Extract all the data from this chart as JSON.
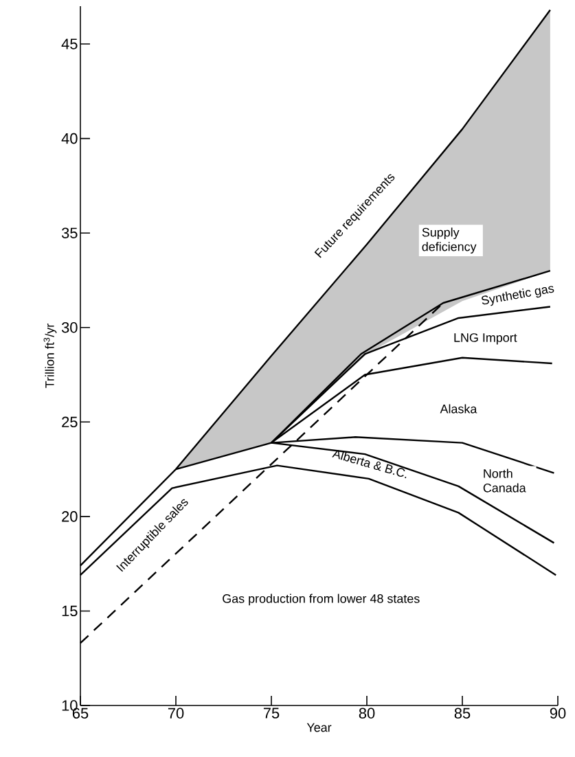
{
  "chart_data": {
    "type": "line",
    "xlabel": "Year",
    "ylabel": "Trillion ft$^{3}$/yr",
    "xlim": [
      65,
      90
    ],
    "ylim": [
      10,
      47
    ],
    "xticks": [
      65,
      70,
      75,
      80,
      85,
      90
    ],
    "yticks": [
      10,
      15,
      20,
      25,
      30,
      35,
      40,
      45
    ],
    "grid": false,
    "marker": "none",
    "line_style": "solid",
    "series": [
      {
        "color": "#000000",
        "x": [
          65,
          70,
          75,
          80,
          85,
          89.6
        ],
        "values": [
          17.4,
          22.5,
          28.5,
          34.4,
          40.5,
          46.8
        ],
        "upper": [
          null,
          22.5,
          28.5,
          34.4,
          40.5,
          46.8
        ],
        "lower": [
          null,
          22.5,
          23.9,
          28.6,
          31.4,
          33.0
        ]
      },
      {
        "color": "#000000",
        "x": [
          70,
          75,
          79.7,
          84,
          89.6
        ],
        "values": [
          22.5,
          23.9,
          28.6,
          31.3,
          33.0
        ]
      },
      {
        "color": "#000000",
        "x": [
          75,
          79.9,
          84.8,
          89.6
        ],
        "values": [
          23.9,
          28.6,
          30.5,
          31.1
        ]
      },
      {
        "color": "#000000",
        "x": [
          75,
          79.9,
          85,
          89.7
        ],
        "values": [
          23.9,
          27.5,
          28.4,
          28.1
        ]
      },
      {
        "color": "#000000",
        "x": [
          75,
          79.4,
          85,
          89.8
        ],
        "values": [
          23.9,
          24.2,
          23.9,
          22.3
        ]
      },
      {
        "color": "#000000",
        "x": [
          75,
          79.9,
          84.8,
          89.8
        ],
        "values": [
          23.9,
          23.3,
          21.6,
          18.6
        ]
      },
      {
        "color": "#000000",
        "x": [
          65,
          69.8,
          75.3,
          80.1,
          84.8,
          89.9
        ],
        "values": [
          16.9,
          21.5,
          22.7,
          22.0,
          20.2,
          16.9
        ]
      },
      {
        "color": "#000000",
        "line_style": "dashed",
        "x": [
          65,
          83.9
        ],
        "values": [
          13.3,
          31.2
        ]
      }
    ],
    "annotations": [
      "Future requirements",
      "Supply deficiency",
      "Synthetic gas",
      "LNG Import",
      "Alaska",
      "North Canada",
      "Alberta & B.C.",
      "Interruptible sales",
      "Gas production from lower 48 states"
    ]
  }
}
